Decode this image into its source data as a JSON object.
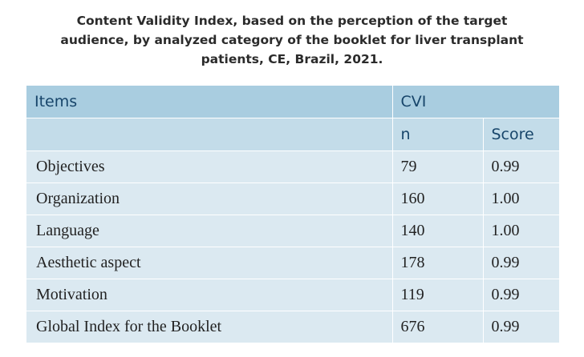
{
  "caption": {
    "line1": "Content Validity Index, based on the perception of the target",
    "line2": "audience, by analyzed category of the booklet for liver transplant",
    "line3": "patients, CE, Brazil, 2021."
  },
  "table": {
    "header": {
      "items": "Items",
      "cvi": "CVI",
      "n": "n",
      "score": "Score"
    },
    "rows": [
      {
        "item": "Objectives",
        "n": "79",
        "score": "0.99"
      },
      {
        "item": "Organization",
        "n": "160",
        "score": "1.00"
      },
      {
        "item": "Language",
        "n": "140",
        "score": "1.00"
      },
      {
        "item": "Aesthetic aspect",
        "n": "178",
        "score": "0.99"
      },
      {
        "item": "Motivation",
        "n": "119",
        "score": "0.99"
      },
      {
        "item": "Global Index for the Booklet",
        "n": "676",
        "score": "0.99"
      }
    ]
  },
  "colors": {
    "header_top": "#a9cde0",
    "header_sub": "#c3dce9",
    "body_row": "#dbe9f1",
    "header_text": "#17456a"
  }
}
